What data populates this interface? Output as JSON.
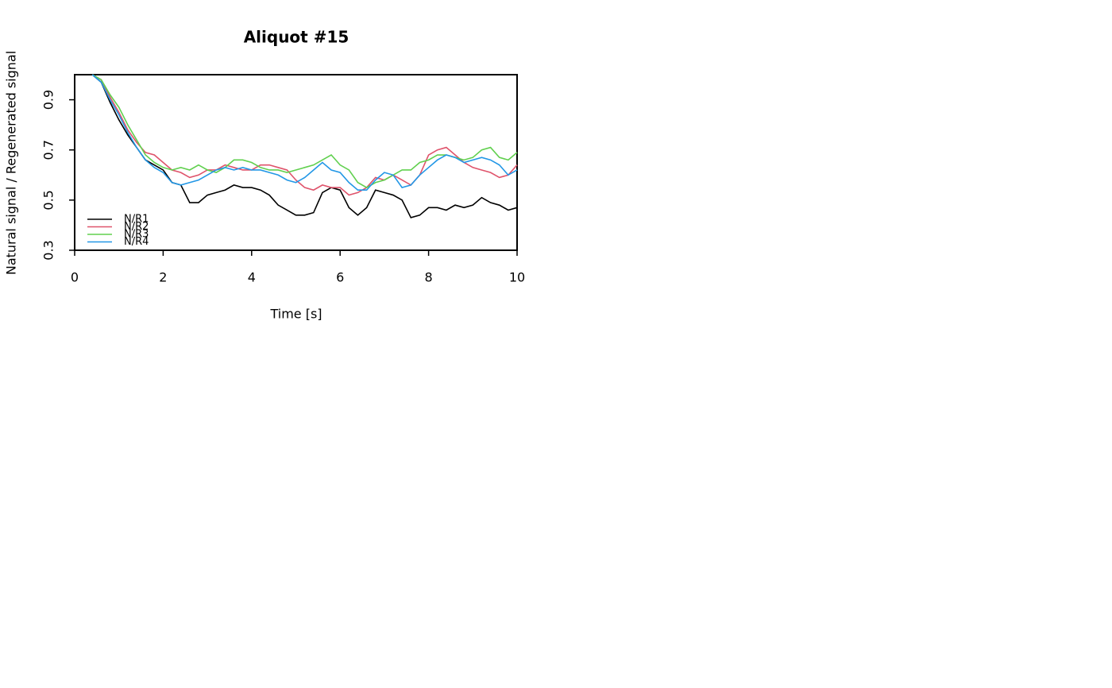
{
  "chart_data": {
    "type": "line",
    "title": "Aliquot #15",
    "x_label": "Time [s]",
    "y_label": "Natural signal / Regenerated signal",
    "x": [
      0.4,
      0.6,
      0.8,
      1.0,
      1.2,
      1.4,
      1.6,
      1.8,
      2.0,
      2.2,
      2.4,
      2.6,
      2.8,
      3.0,
      3.2,
      3.4,
      3.6,
      3.8,
      4.0,
      4.2,
      4.4,
      4.6,
      4.8,
      5.0,
      5.2,
      5.4,
      5.6,
      5.8,
      6.0,
      6.2,
      6.4,
      6.6,
      6.8,
      7.0,
      7.2,
      7.4,
      7.6,
      7.8,
      8.0,
      8.2,
      8.4,
      8.6,
      8.8,
      9.0,
      9.2,
      9.4,
      9.6,
      9.8,
      10.0
    ],
    "series": [
      {
        "name": "N/R1",
        "color": "#000000",
        "values": [
          1.0,
          0.97,
          0.89,
          0.82,
          0.76,
          0.71,
          0.66,
          0.64,
          0.62,
          0.57,
          0.56,
          0.49,
          0.49,
          0.52,
          0.53,
          0.54,
          0.56,
          0.55,
          0.55,
          0.54,
          0.52,
          0.48,
          0.46,
          0.44,
          0.44,
          0.45,
          0.53,
          0.55,
          0.54,
          0.47,
          0.44,
          0.47,
          0.54,
          0.53,
          0.52,
          0.5,
          0.43,
          0.44,
          0.47,
          0.47,
          0.46,
          0.48,
          0.47,
          0.48,
          0.51,
          0.49,
          0.48,
          0.46,
          0.47
        ]
      },
      {
        "name": "N/R2",
        "color": "#DF536B",
        "values": [
          1.0,
          0.98,
          0.91,
          0.85,
          0.78,
          0.73,
          0.69,
          0.68,
          0.65,
          0.62,
          0.61,
          0.59,
          0.6,
          0.62,
          0.62,
          0.64,
          0.63,
          0.62,
          0.62,
          0.64,
          0.64,
          0.63,
          0.62,
          0.58,
          0.55,
          0.54,
          0.56,
          0.55,
          0.55,
          0.52,
          0.53,
          0.55,
          0.59,
          0.58,
          0.6,
          0.58,
          0.56,
          0.6,
          0.68,
          0.7,
          0.71,
          0.68,
          0.65,
          0.63,
          0.62,
          0.61,
          0.59,
          0.6,
          0.64
        ]
      },
      {
        "name": "N/R3",
        "color": "#61D04F",
        "values": [
          1.0,
          0.98,
          0.92,
          0.87,
          0.8,
          0.74,
          0.68,
          0.65,
          0.63,
          0.62,
          0.63,
          0.62,
          0.64,
          0.62,
          0.61,
          0.63,
          0.66,
          0.66,
          0.65,
          0.63,
          0.62,
          0.62,
          0.61,
          0.62,
          0.63,
          0.64,
          0.66,
          0.68,
          0.64,
          0.62,
          0.57,
          0.55,
          0.57,
          0.58,
          0.6,
          0.62,
          0.62,
          0.65,
          0.66,
          0.68,
          0.68,
          0.67,
          0.66,
          0.67,
          0.7,
          0.71,
          0.67,
          0.66,
          0.69
        ]
      },
      {
        "name": "N/R4",
        "color": "#2297E6",
        "values": [
          1.0,
          0.97,
          0.9,
          0.84,
          0.77,
          0.71,
          0.66,
          0.63,
          0.61,
          0.57,
          0.56,
          0.57,
          0.58,
          0.6,
          0.62,
          0.63,
          0.62,
          0.63,
          0.62,
          0.62,
          0.61,
          0.6,
          0.58,
          0.57,
          0.59,
          0.62,
          0.65,
          0.62,
          0.61,
          0.57,
          0.54,
          0.54,
          0.58,
          0.61,
          0.6,
          0.55,
          0.56,
          0.6,
          0.63,
          0.66,
          0.68,
          0.67,
          0.65,
          0.66,
          0.67,
          0.66,
          0.64,
          0.6,
          0.62
        ]
      }
    ],
    "xlim": [
      0,
      10
    ],
    "xticks": [
      0,
      2,
      4,
      6,
      8,
      10
    ],
    "ylim": [
      0.3,
      1.0
    ],
    "yticks": [
      0.3,
      0.5,
      0.7,
      0.9
    ],
    "hline": 1.0,
    "grid": false,
    "legend": "bottomleft"
  }
}
